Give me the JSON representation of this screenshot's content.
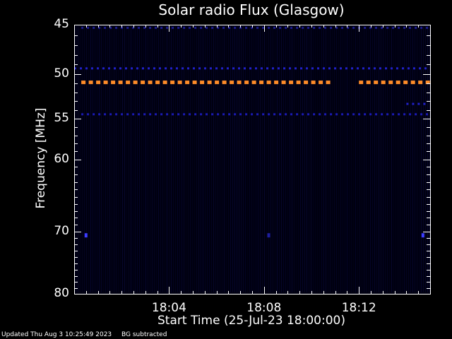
{
  "chart_data": {
    "type": "heatmap",
    "title": "Solar radio Flux (Glasgow)",
    "xlabel": "Start Time (25-Jul-23 18:00:00)",
    "ylabel": "Frequency [MHz]",
    "x_range_minutes": [
      0,
      15
    ],
    "ylim": [
      45,
      80
    ],
    "y_scale": "log",
    "y_inverted": true,
    "y_ticks": [
      45,
      50,
      55,
      60,
      70,
      80
    ],
    "x_ticks": [
      {
        "minute": 4,
        "label": "18:04"
      },
      {
        "minute": 8,
        "label": "18:08"
      },
      {
        "minute": 12,
        "label": "18:12"
      }
    ],
    "background_color": "#000010",
    "features": [
      {
        "kind": "band",
        "freq_mhz": 50.9,
        "color": "#ff8c28",
        "minutes": [
          [
            0.3,
            11.0
          ],
          [
            12.0,
            15.0
          ]
        ]
      },
      {
        "kind": "band",
        "freq_mhz": 49.4,
        "color": "#2020c8",
        "minutes": [
          [
            0,
            15
          ]
        ]
      },
      {
        "kind": "band",
        "freq_mhz": 54.5,
        "color": "#1a1ab4",
        "minutes": [
          [
            0.3,
            15.0
          ]
        ]
      },
      {
        "kind": "band",
        "freq_mhz": 45.3,
        "color": "#1a1a8c",
        "minutes": [
          [
            0.3,
            15.0
          ]
        ]
      },
      {
        "kind": "band",
        "freq_mhz": 53.3,
        "color": "#2020c8",
        "minutes": [
          [
            14.0,
            14.8
          ]
        ]
      },
      {
        "kind": "spot",
        "freq_mhz": 70.6,
        "minute": 0.5,
        "color": "#3c3cff"
      },
      {
        "kind": "spot",
        "freq_mhz": 70.6,
        "minute": 14.7,
        "color": "#3c3cff"
      },
      {
        "kind": "spot",
        "freq_mhz": 70.6,
        "minute": 8.2,
        "color": "#1e1ea0"
      }
    ]
  },
  "footer": {
    "updated": "Updated Thu Aug  3 10:25:49 2023",
    "bg_note": "BG subtracted"
  },
  "colors": {
    "axis": "#ffffff",
    "band_primary": "#ff8c28",
    "band_secondary": "#2020c8"
  }
}
